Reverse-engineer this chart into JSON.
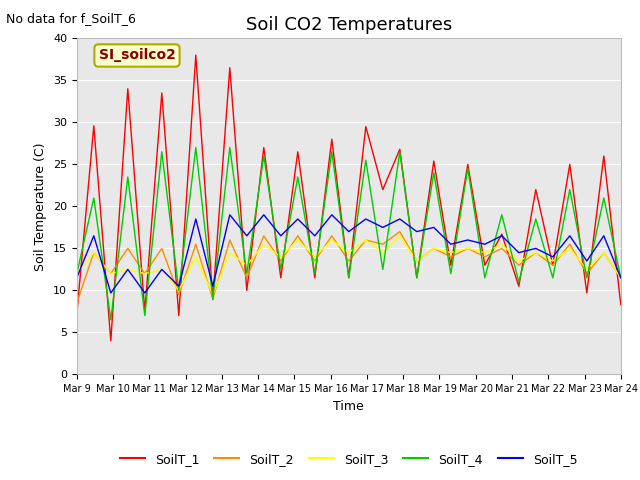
{
  "title": "Soil CO2 Temperatures",
  "xlabel": "Time",
  "ylabel": "Soil Temperature (C)",
  "note": "No data for f_SoilT_6",
  "annotation": "SI_soilco2",
  "ylim": [
    0,
    40
  ],
  "x_tick_labels": [
    "Mar 9",
    "Mar 10",
    "Mar 11",
    "Mar 12",
    "Mar 13",
    "Mar 14",
    "Mar 15",
    "Mar 16",
    "Mar 17",
    "Mar 18",
    "Mar 19",
    "Mar 20",
    "Mar 21",
    "Mar 22",
    "Mar 23",
    "Mar 24"
  ],
  "background_color": "#e8e8e8",
  "series_colors": {
    "SoilT_1": "#ff0000",
    "SoilT_2": "#ff8c00",
    "SoilT_3": "#ffff00",
    "SoilT_4": "#00cc00",
    "SoilT_5": "#0000ff"
  },
  "SoilT_1": [
    7.2,
    29.6,
    4.0,
    34.0,
    7.5,
    33.5,
    7.0,
    38.0,
    8.9,
    36.5,
    10.0,
    27.0,
    11.5,
    26.5,
    11.5,
    28.0,
    11.5,
    29.5,
    22.0,
    26.8,
    11.5,
    25.4,
    13.0,
    25.0,
    13.0,
    16.7,
    10.5,
    22.0,
    13.0,
    25.0,
    9.7,
    26.0,
    8.3
  ],
  "SoilT_2": [
    8.5,
    14.5,
    12.0,
    15.0,
    12.0,
    15.0,
    9.5,
    15.5,
    9.0,
    16.0,
    11.5,
    16.5,
    13.5,
    16.5,
    13.5,
    16.5,
    13.5,
    16.0,
    15.5,
    17.0,
    13.5,
    15.0,
    14.0,
    15.0,
    14.0,
    15.0,
    13.0,
    14.5,
    13.0,
    15.5,
    12.0,
    14.5,
    11.5
  ],
  "SoilT_3": [
    12.0,
    14.5,
    12.0,
    12.5,
    12.0,
    12.5,
    10.0,
    14.0,
    9.5,
    14.5,
    13.0,
    15.5,
    14.0,
    16.0,
    14.0,
    16.0,
    14.5,
    16.0,
    14.5,
    16.5,
    13.5,
    15.0,
    14.5,
    15.0,
    14.5,
    15.5,
    13.5,
    14.5,
    13.5,
    15.0,
    12.5,
    14.5,
    11.5
  ],
  "SoilT_4": [
    12.0,
    21.0,
    6.5,
    23.5,
    7.0,
    26.5,
    10.0,
    27.0,
    9.0,
    27.0,
    12.0,
    26.0,
    12.5,
    23.5,
    12.0,
    26.5,
    11.5,
    25.5,
    12.5,
    26.5,
    11.5,
    24.0,
    12.0,
    24.5,
    11.5,
    19.0,
    11.0,
    18.5,
    11.5,
    22.0,
    11.5,
    21.0,
    11.5
  ],
  "SoilT_5": [
    11.5,
    16.5,
    9.7,
    12.5,
    9.7,
    12.5,
    10.5,
    18.5,
    10.5,
    19.0,
    16.5,
    19.0,
    16.5,
    18.5,
    16.5,
    19.0,
    17.0,
    18.5,
    17.5,
    18.5,
    17.0,
    17.5,
    15.5,
    16.0,
    15.5,
    16.5,
    14.5,
    15.0,
    14.0,
    16.5,
    13.5,
    16.5,
    11.5
  ],
  "title_fontsize": 13,
  "axis_label_fontsize": 9,
  "tick_fontsize": 8,
  "note_fontsize": 9,
  "annotation_fontsize": 10
}
